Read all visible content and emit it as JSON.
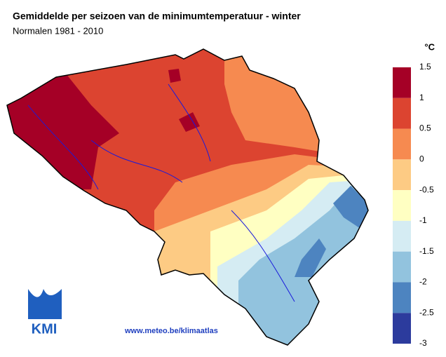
{
  "title": "Gemiddelde per seizoen van de minimumtemperatuur - winter",
  "subtitle": "Normalen 1981 - 2010",
  "legend": {
    "unit": "°C",
    "ticks": [
      1.5,
      1,
      0.5,
      0,
      -0.5,
      -1,
      -1.5,
      -2,
      -2.5,
      -3
    ],
    "colors": [
      "#a50026",
      "#dc4430",
      "#f68a50",
      "#fdcb84",
      "#ffffc2",
      "#d5ecf3",
      "#92c3de",
      "#4d84c0",
      "#2c3b9d"
    ]
  },
  "footer": {
    "url": "www.meteo.be/klimaatlas",
    "logo": "KMI"
  }
}
